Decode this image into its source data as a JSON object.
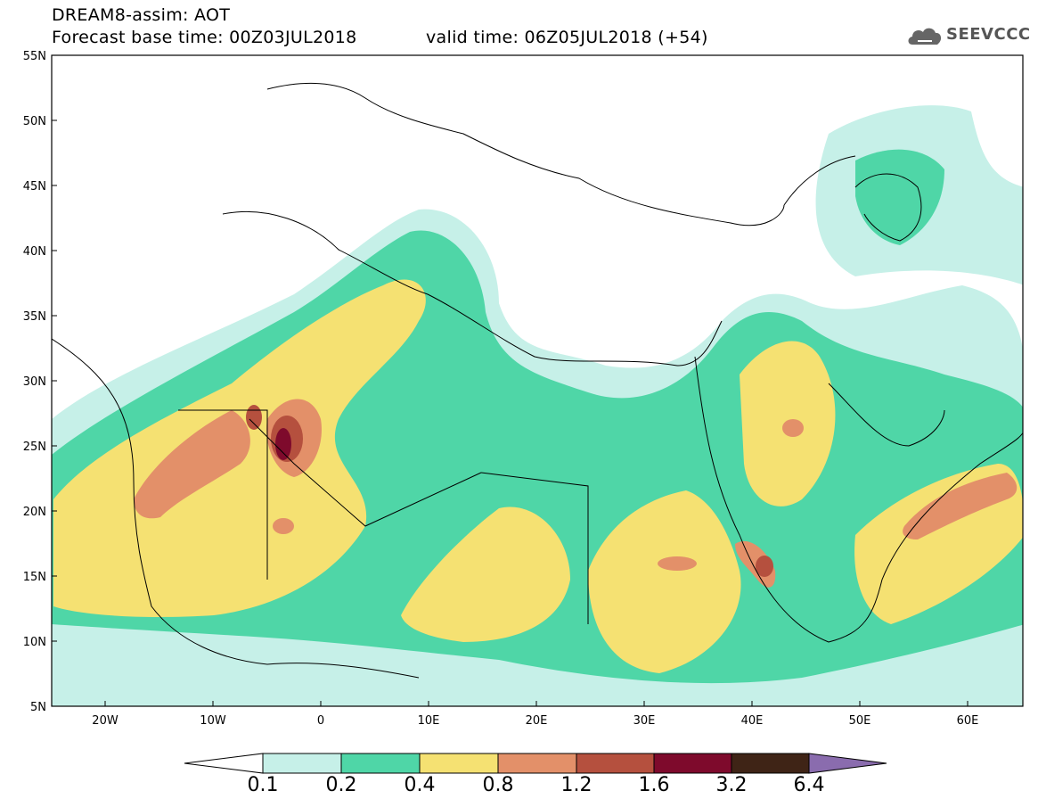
{
  "header": {
    "title": "DREAM8-assim: AOT",
    "base_time": "Forecast base time: 00Z03JUL2018",
    "valid_time": "valid time: 06Z05JUL2018 (+54)"
  },
  "logo": {
    "text": "SEEVCCC",
    "icon": "cloud-icon"
  },
  "map": {
    "lon_range": [
      -25,
      65
    ],
    "lat_range": [
      5,
      55
    ],
    "lat_labels": [
      "5N",
      "10N",
      "15N",
      "20N",
      "25N",
      "30N",
      "35N",
      "40N",
      "45N",
      "50N",
      "55N"
    ],
    "lon_labels": [
      "20W",
      "10W",
      "0",
      "10E",
      "20E",
      "30E",
      "40E",
      "50E",
      "60E"
    ]
  },
  "colorbar": {
    "labels": [
      "0.1",
      "0.2",
      "0.4",
      "0.8",
      "1.2",
      "1.6",
      "3.2",
      "6.4"
    ],
    "colors": [
      "#ffffff",
      "#c6f0e8",
      "#4fd6a7",
      "#f5e172",
      "#e39069",
      "#b5503e",
      "#7e0a2c",
      "#3f2416",
      "#8a6cae"
    ]
  }
}
